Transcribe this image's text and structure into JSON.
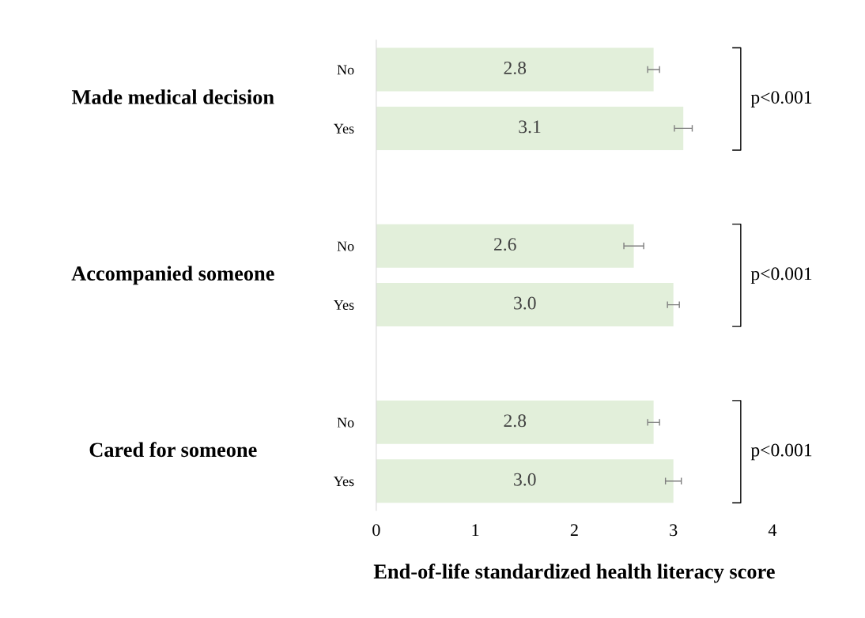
{
  "chart_data": {
    "type": "bar",
    "orientation": "horizontal",
    "categories": [
      "No",
      "Yes",
      null,
      "No",
      "Yes",
      null,
      "No",
      "Yes"
    ],
    "values": [
      2.8,
      3.1,
      null,
      2.6,
      3.0,
      null,
      2.8,
      3.0
    ],
    "errors": [
      0.06,
      0.09,
      null,
      0.1,
      0.06,
      null,
      0.06,
      0.08
    ],
    "color": "#e2efda",
    "value_labels": [
      "2.8",
      "3.1",
      null,
      "2.6",
      "3.0",
      null,
      "2.8",
      "3.0"
    ],
    "xlim": [
      0,
      4
    ],
    "xticks": [
      0,
      1,
      2,
      3,
      4
    ],
    "xlabel": "End-of-life standardized health literacy score",
    "grid": false,
    "annotations": [
      "Made medical decision",
      "Accompanied someone",
      "Cared for someone",
      "p<0.001",
      "p<0.001",
      "p<0.001"
    ]
  }
}
